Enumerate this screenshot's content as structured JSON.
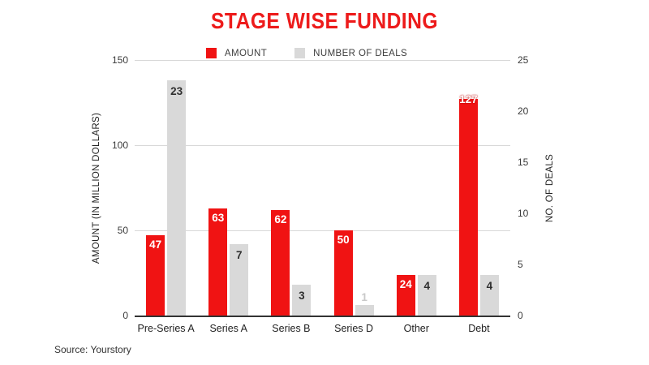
{
  "title": "STAGE WISE FUNDING",
  "source": "Source: Yourstory",
  "colors": {
    "amount_red": "#f01313",
    "deals_gray": "#d9d9d9",
    "title_red": "#ed1b1b",
    "gridline": "#d8d8d8",
    "axis_line": "#333333"
  },
  "legend": [
    {
      "label": "AMOUNT",
      "color": "#f01313"
    },
    {
      "label": "NUMBER OF DEALS",
      "color": "#d9d9d9"
    }
  ],
  "chart_data": {
    "type": "bar",
    "title": "STAGE WISE FUNDING",
    "categories": [
      "Pre-Series A",
      "Series A",
      "Series B",
      "Series D",
      "Other",
      "Debt"
    ],
    "series": [
      {
        "name": "AMOUNT",
        "axis": "left",
        "color": "#f01313",
        "values": [
          47,
          63,
          62,
          50,
          24,
          127
        ]
      },
      {
        "name": "NUMBER OF DEALS",
        "axis": "right",
        "color": "#d9d9d9",
        "values": [
          23,
          7,
          3,
          1,
          4,
          4
        ]
      }
    ],
    "left_axis": {
      "label": "AMOUNT (IN MILLION DOLLARS)",
      "range": [
        0,
        150
      ],
      "ticks": [
        0,
        50,
        100,
        150
      ]
    },
    "right_axis": {
      "label": "NO. OF DEALS",
      "range": [
        0,
        25
      ],
      "ticks": [
        0,
        5,
        10,
        15,
        20,
        25
      ]
    },
    "grid": true,
    "legend_position": "top"
  }
}
